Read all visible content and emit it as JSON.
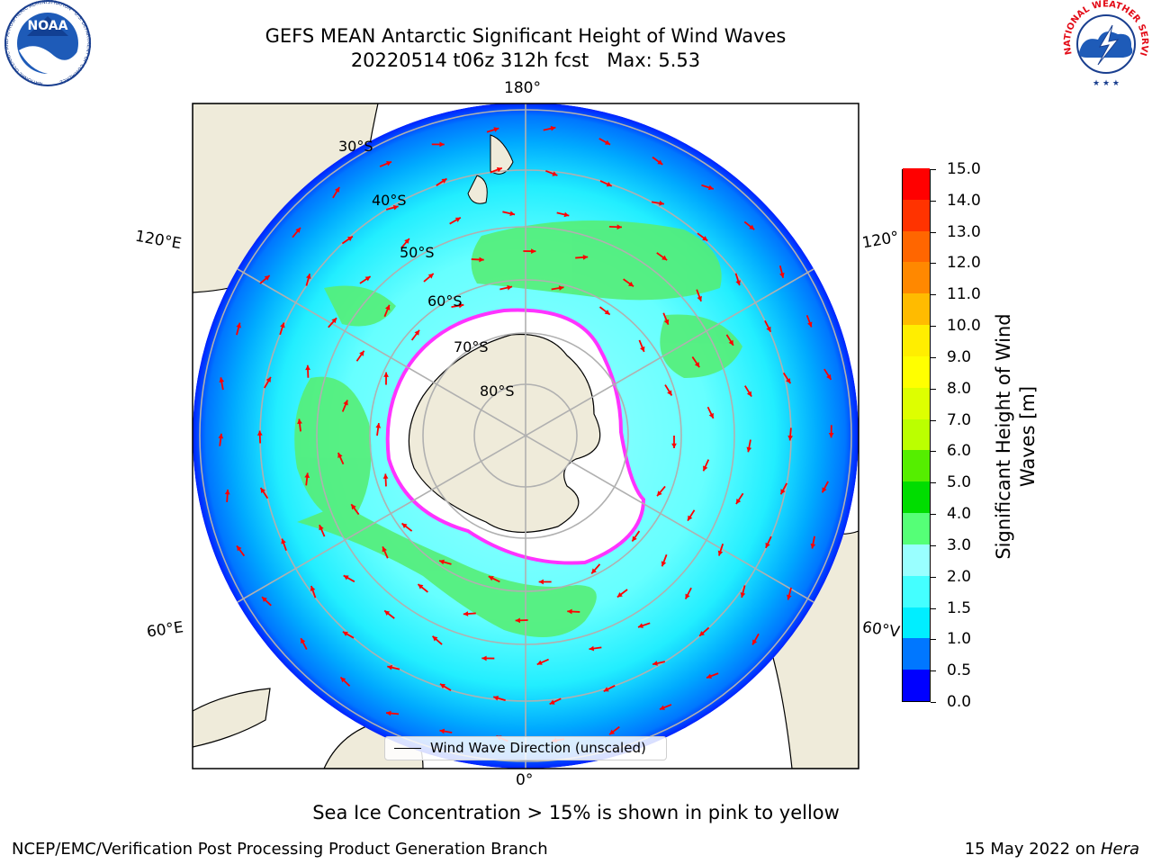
{
  "title": {
    "line1": "GEFS MEAN Antarctic Significant Height of Wind Waves",
    "line2": "20220514 t06z 312h fcst   Max: 5.53"
  },
  "logos": {
    "left": "NOAA",
    "left_ring": "NATIONAL OCEANIC AND ATMOSPHERIC ADMINISTRATION · U.S. DEPARTMENT OF COMMERCE",
    "right_ring": "NATIONAL WEATHER SERVICE"
  },
  "map": {
    "lon_labels": {
      "top": "180°",
      "bottom": "0°",
      "upper_left": "120°E",
      "upper_right": "120°",
      "lower_left": "60°E",
      "lower_right": "60°V"
    },
    "lat_labels": [
      "30°S",
      "40°S",
      "50°S",
      "60°S",
      "70°S",
      "80°S"
    ],
    "colors": {
      "land": "#efebda",
      "ice": "#ffffff",
      "arrow": "#ff0000",
      "grid": "#b0b0b0"
    }
  },
  "colorbar": {
    "title": "Significant Height of Wind Waves [m]",
    "ticks": [
      "0.0",
      "0.5",
      "1.0",
      "1.5",
      "2.0",
      "3.0",
      "4.0",
      "5.0",
      "6.0",
      "7.0",
      "8.0",
      "9.0",
      "10.0",
      "11.0",
      "12.0",
      "13.0",
      "14.0",
      "15.0"
    ],
    "colors": [
      "#0000ff",
      "#0077ff",
      "#00eeff",
      "#44ffff",
      "#99ffff",
      "#55ff77",
      "#00dd00",
      "#55ee00",
      "#bbff00",
      "#ddff00",
      "#ffff00",
      "#ffee00",
      "#ffbb00",
      "#ff8800",
      "#ff6600",
      "#ff3300",
      "#ff0000"
    ]
  },
  "legend": {
    "label": "Wind Wave Direction (unscaled)"
  },
  "note": "Sea Ice Concentration > 15% is shown in pink to yellow",
  "footer": {
    "left": "NCEP/EMC/Verification Post Processing Product Generation Branch",
    "right_prefix": "15 May 2022 on ",
    "right_host": "Hera"
  }
}
